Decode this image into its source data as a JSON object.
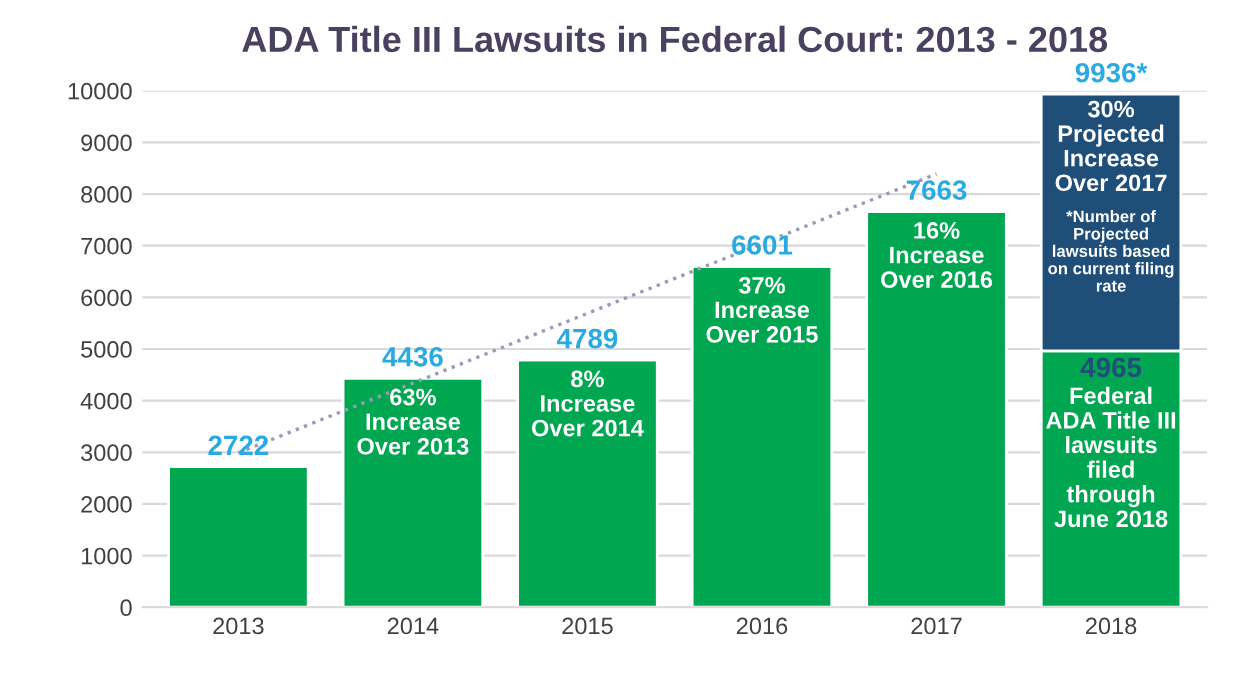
{
  "chart_data": {
    "type": "bar",
    "title": "ADA Title III Lawsuits in Federal Court: 2013 - 2018",
    "categories": [
      "2013",
      "2014",
      "2015",
      "2016",
      "2017",
      "2018"
    ],
    "stacked": true,
    "series": [
      {
        "color": "#00a650",
        "values": [
          2722,
          4436,
          4789,
          6601,
          7663,
          4965
        ],
        "value_labels": [
          "2722",
          "4436",
          "4789",
          "6601",
          "7663",
          "4965"
        ]
      },
      {
        "color": "#1f4e79",
        "values": [
          null,
          null,
          null,
          null,
          null,
          4971
        ]
      },
      {
        "type": "line",
        "color": "#9999bb",
        "line_style": "dotted",
        "values": [
          2990,
          4340,
          5690,
          7040,
          8390,
          null
        ]
      }
    ],
    "totals": [
      null,
      null,
      null,
      null,
      null,
      "9936*"
    ],
    "ylim": [
      0,
      10000
    ],
    "yticks": [
      0,
      1000,
      2000,
      3000,
      4000,
      5000,
      6000,
      7000,
      8000,
      9000,
      10000
    ],
    "grid": "y",
    "annotations": [
      "63%\nIncrease\nOver 2013",
      "8%\nIncrease\nOver 2014",
      "37%\nIncrease\nOver 2015",
      "16%\nIncrease\nOver 2016",
      "30%\nProjected\nIncrease\nOver 2017",
      "*Number of\nProjected\nlawsuits based\non current filing\nrate",
      "Federal\nADA Title III\nlawsuits\nfiled\nthrough\nJune 2018"
    ]
  }
}
